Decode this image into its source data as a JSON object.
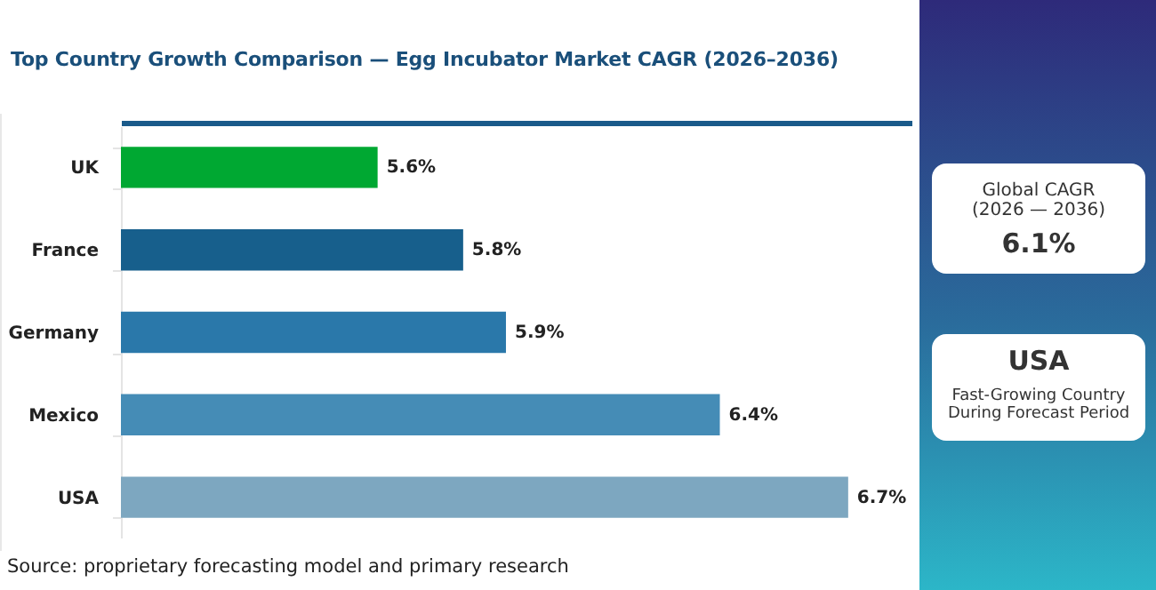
{
  "chart_data": {
    "type": "bar",
    "orientation": "horizontal",
    "title": "Top Country Growth Comparison — Egg Incubator Market CAGR (2026–2036)",
    "categories": [
      "UK",
      "France",
      "Germany",
      "Mexico",
      "USA"
    ],
    "values": [
      5.6,
      5.8,
      5.9,
      6.4,
      6.7
    ],
    "colors": [
      "#00a832",
      "#175f8c",
      "#2a78aa",
      "#458cb6",
      "#7da7c0"
    ],
    "value_labels": [
      "5.6%",
      "5.8%",
      "5.9%",
      "6.4%",
      "6.7%"
    ],
    "xlim": [
      5.0,
      6.85
    ],
    "tick_labels": "y",
    "annotations": [
      "Global CAGR",
      "(2026 — 2036)",
      "6.1%",
      "USA",
      "Fast-Growing Country",
      "During Forecast Period",
      "Source: proprietary forecasting model and primary research"
    ]
  }
}
